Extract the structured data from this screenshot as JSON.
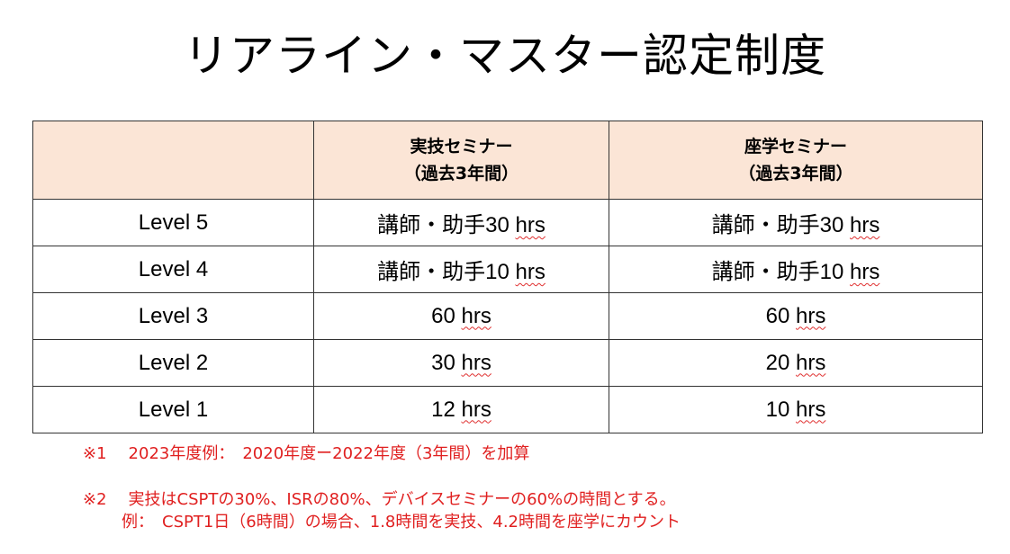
{
  "title": "リアライン・マスター認定制度",
  "table": {
    "headers": [
      {
        "line1": "",
        "line2": ""
      },
      {
        "line1": "実技セミナー",
        "line2": "（過去3年間）"
      },
      {
        "line1": "座学セミナー",
        "line2": "（過去3年間）"
      }
    ],
    "rows": [
      {
        "level": "Level 5",
        "practical_prefix": "講師・助手30 ",
        "practical_unit": "hrs",
        "lecture_prefix": "講師・助手30 ",
        "lecture_unit": "hrs"
      },
      {
        "level": "Level 4",
        "practical_prefix": "講師・助手10 ",
        "practical_unit": "hrs",
        "lecture_prefix": "講師・助手10 ",
        "lecture_unit": "hrs"
      },
      {
        "level": "Level 3",
        "practical_prefix": "60 ",
        "practical_unit": "hrs",
        "lecture_prefix": "60 ",
        "lecture_unit": "hrs"
      },
      {
        "level": "Level 2",
        "practical_prefix": "30 ",
        "practical_unit": "hrs",
        "lecture_prefix": "20 ",
        "lecture_unit": "hrs"
      },
      {
        "level": "Level 1",
        "practical_prefix": "12 ",
        "practical_unit": "hrs",
        "lecture_prefix": "10 ",
        "lecture_unit": "hrs"
      }
    ]
  },
  "notes": {
    "note1_mark": "※1",
    "note1_text": "2023年度例：　2020年度ー2022年度（3年間）を加算",
    "note2_mark": "※2",
    "note2_text": "実技はCSPTの30%、ISRの80%、デバイスセミナーの60%の時間とする。",
    "note3_text": "例：　CSPT1日（6時間）の場合、1.8時間を実技、4.2時間を座学にカウント"
  },
  "colors": {
    "header_fill": "#fbe5d6",
    "note_text": "#e02020",
    "border": "#333333",
    "spell_underline": "#e03030"
  }
}
